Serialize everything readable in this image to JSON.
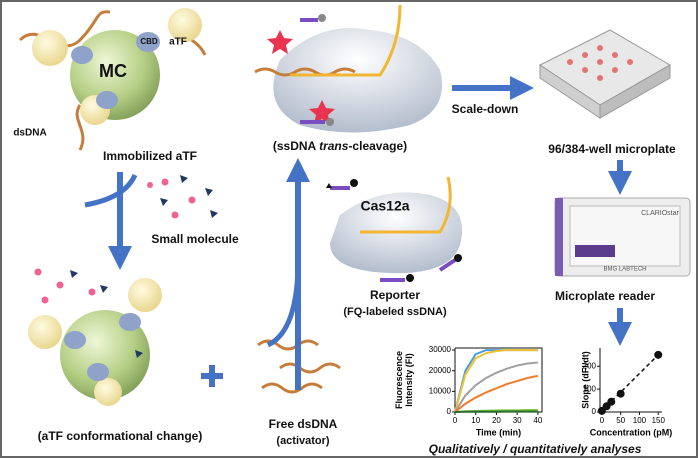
{
  "labels": {
    "mc": "MC",
    "cbd": "CBD",
    "atf": "aTF",
    "dsdna": "dsDNA",
    "immobilized": "Immobilized aTF",
    "small_molecule": "Small molecule",
    "conformational": "(aTF conformational change)",
    "free_dsdna": "Free dsDNA",
    "activator": "(activator)",
    "cleavage": [
      "(ssDNA ",
      "trans",
      "-cleavage)"
    ],
    "cas12a": "Cas12a",
    "reporter": "Reporter",
    "fq": "(FQ-labeled ssDNA)",
    "scale_down": "Scale-down",
    "microplate": "96/384-well microplate",
    "clariostar": "CLARIOstar",
    "bmg": "BMG LABTECH",
    "reader": "Microplate reader",
    "analyses": "Qualitatively / quantitatively analyses"
  },
  "chart_data": [
    {
      "type": "line",
      "ylabel": [
        "Fluorescence",
        "Intensity (FI)"
      ],
      "xlabel": "Time (min)",
      "x": [
        0,
        5,
        10,
        15,
        20,
        25,
        30,
        35,
        40
      ],
      "series": [
        {
          "color": "#4a9fe0",
          "values": [
            0,
            20000,
            28000,
            30000,
            30000,
            30000,
            30000,
            30000,
            30000
          ]
        },
        {
          "color": "#f2c230",
          "values": [
            0,
            18000,
            26000,
            28500,
            29500,
            30000,
            30000,
            30000,
            30000
          ]
        },
        {
          "color": "#a0a0a0",
          "values": [
            0,
            8000,
            13000,
            16500,
            19000,
            21000,
            22500,
            23500,
            24000
          ]
        },
        {
          "color": "#f07a2a",
          "values": [
            0,
            4000,
            7000,
            9500,
            11500,
            13500,
            15000,
            16500,
            17500
          ]
        },
        {
          "color": "#6cbf3a",
          "values": [
            0,
            300,
            500,
            600,
            700,
            800,
            800,
            900,
            900
          ]
        },
        {
          "color": "#2d6a2d",
          "values": [
            0,
            100,
            100,
            150,
            150,
            200,
            200,
            200,
            200
          ]
        }
      ],
      "xlim": [
        0,
        42
      ],
      "ylim": [
        0,
        31000
      ],
      "xticks": [
        0,
        10,
        20,
        30,
        40
      ],
      "yticks": [
        0,
        10000,
        20000,
        30000
      ]
    },
    {
      "type": "scatter",
      "ylabel": "Slope (dFI/dt)",
      "xlabel": "Concentration (pM)",
      "x": [
        0,
        12.5,
        25,
        50,
        150
      ],
      "values": [
        5,
        25,
        45,
        80,
        250
      ],
      "color": "#111111",
      "xlim": [
        -5,
        160
      ],
      "ylim": [
        0,
        280
      ],
      "xticks": [
        0,
        50,
        100,
        150
      ],
      "yticks": [
        0,
        100,
        200
      ]
    }
  ]
}
